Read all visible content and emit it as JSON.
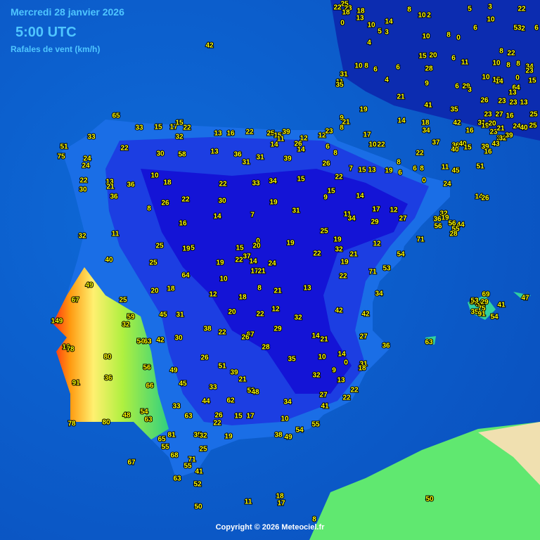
{
  "header": {
    "date": "Mercredi 28 janvier 2026",
    "time": "5:00 UTC",
    "subtitle": "Rafales de vent (km/h)"
  },
  "stations": [
    42,
    65,
    33,
    33,
    15,
    17,
    22,
    15,
    32,
    22,
    51,
    75,
    24,
    24,
    22,
    30,
    13,
    21,
    36,
    36,
    10,
    18,
    30,
    58,
    13,
    16,
    22,
    13,
    36,
    31,
    31,
    25,
    15,
    39,
    11,
    12,
    12,
    23,
    14,
    14,
    26,
    39,
    6,
    8,
    15,
    26,
    22,
    15,
    9,
    22,
    33,
    34,
    8,
    26,
    22,
    30,
    19,
    31,
    7,
    14,
    16,
    11,
    32,
    25,
    19,
    5,
    15,
    0,
    20,
    19,
    25,
    19,
    22,
    32,
    21,
    12,
    54,
    71,
    40,
    25,
    22,
    37,
    14,
    24,
    19,
    17,
    21,
    64,
    10,
    49,
    20,
    18,
    12,
    18,
    8,
    21,
    13,
    19,
    22,
    71,
    53,
    34,
    25,
    67,
    45,
    31,
    20,
    22,
    12,
    32,
    42,
    42,
    149,
    59,
    32,
    38,
    22,
    67,
    26,
    29,
    14,
    21,
    27,
    36,
    16,
    78,
    54,
    63,
    42,
    30,
    28,
    80,
    26,
    51,
    39,
    21,
    35,
    10,
    14,
    0,
    31,
    18,
    9,
    56,
    49,
    36,
    91,
    66,
    45,
    33,
    53,
    48,
    32,
    13,
    22,
    22,
    27,
    41,
    44,
    62,
    34,
    33,
    54,
    48,
    63,
    63,
    26,
    22,
    15,
    17,
    10,
    54,
    55,
    78,
    80,
    81,
    65,
    55,
    35,
    32,
    19,
    38,
    49,
    25,
    68,
    71,
    55,
    41,
    67,
    63,
    52,
    50,
    11,
    18,
    17,
    8,
    50,
    25,
    22,
    23,
    18,
    18,
    13,
    0,
    10,
    5,
    14,
    3,
    8,
    10,
    2,
    5,
    3,
    10,
    22,
    6,
    53,
    2,
    6,
    10,
    8,
    0,
    4,
    8,
    22,
    15,
    20,
    6,
    11,
    10,
    8,
    6,
    6,
    28,
    10,
    8,
    8,
    34,
    31,
    11,
    35,
    4,
    9,
    6,
    29,
    3,
    10,
    15,
    14,
    64,
    13,
    23,
    0,
    15,
    21,
    41,
    26,
    23,
    23,
    13,
    19,
    35,
    14,
    9,
    8,
    21,
    23,
    27,
    16,
    25,
    18,
    34,
    37,
    42,
    16,
    31,
    19,
    20,
    23,
    21,
    24,
    40,
    25,
    17,
    10,
    22,
    36,
    40,
    39,
    43,
    33,
    32,
    39,
    40,
    15,
    16,
    15,
    7,
    13,
    19,
    6,
    8,
    6,
    8,
    0,
    11,
    45,
    22,
    51,
    11,
    34,
    29,
    17,
    12,
    27,
    24,
    14,
    26,
    32,
    36,
    19,
    56,
    56,
    44,
    55,
    28,
    14,
    69,
    58,
    75,
    29,
    57,
    35,
    91,
    41,
    47,
    54,
    63,
    53
  ],
  "copyright": "Copyright © 2026 Meteociel.fr"
}
